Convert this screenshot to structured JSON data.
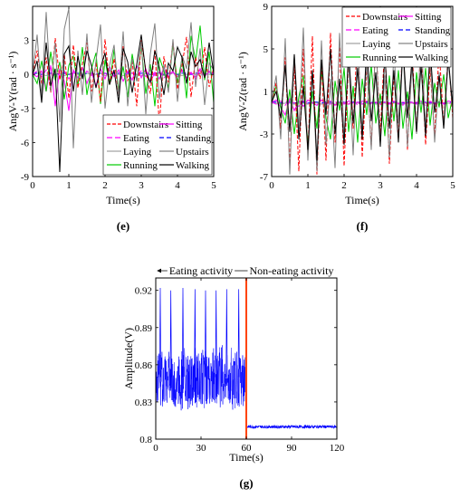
{
  "chart_data": [
    {
      "panel": "(e)",
      "type": "line",
      "xlabel": "Time(s)",
      "ylabel": "AngV-Y(rad · s⁻¹)",
      "xlim": [
        0,
        5
      ],
      "ylim": [
        -9,
        6
      ],
      "xticks": [
        0,
        1,
        2,
        3,
        4,
        5
      ],
      "yticks": [
        -9,
        -6,
        -3,
        0,
        3
      ],
      "legend_position": "bottom-right",
      "series": [
        {
          "name": "Downstairs",
          "color": "#ff0000",
          "dash": "4,2",
          "values": [
            0.0,
            2.1,
            -0.8,
            1.5,
            -1.6,
            3.2,
            -0.5,
            1.8,
            -2.1,
            2.6,
            -1.2,
            0.9,
            2.8,
            -1.5,
            1.1,
            -2.4,
            3.1,
            -0.9,
            1.4,
            -1.8,
            2.5,
            -0.6,
            1.2,
            -2.8,
            3.0,
            0.4,
            -1.7,
            2.2,
            -4.5,
            1.6,
            -0.7,
            2.9,
            -1.3,
            0.8,
            3.3,
            -2.0,
            1.5,
            -0.4,
            2.4,
            -1.1,
            0.6
          ]
        },
        {
          "name": "Eating",
          "color": "#ff00ff",
          "dash": "6,3",
          "values": [
            0.0,
            0.3,
            -0.2,
            0.4,
            -0.3,
            0.2,
            -0.1,
            0.3,
            -0.4,
            0.2,
            0.1,
            -0.2,
            0.3,
            -0.1,
            0.2,
            -0.3,
            0.1,
            0.4,
            -0.2,
            0.1,
            -0.3,
            0.2,
            0.1,
            -0.1,
            0.3,
            -0.2,
            0.4,
            -0.1,
            0.2,
            -0.3,
            0.1,
            0.2,
            -0.2,
            0.3,
            -0.1,
            0.1,
            -0.2,
            0.3,
            -0.1,
            0.2,
            0.0
          ]
        },
        {
          "name": "Laying",
          "color": "#a0a0a0",
          "dash": "",
          "values": [
            0.0,
            0.1,
            0.0,
            -0.1,
            0.1,
            0.0,
            0.1,
            -0.1,
            0.0,
            0.1,
            0.0,
            -0.1,
            0.1,
            0.0,
            0.0,
            0.1,
            -0.1,
            0.0,
            0.1,
            0.0,
            -0.1,
            0.0,
            0.1,
            0.0,
            -0.1,
            0.1,
            0.0,
            0.0,
            0.1,
            -0.1,
            0.0,
            0.1,
            0.0,
            -0.1,
            0.0,
            0.1,
            0.0,
            -0.1,
            0.1,
            0.0,
            0.0
          ]
        },
        {
          "name": "Running",
          "color": "#00cc00",
          "dash": "",
          "values": [
            0.0,
            -0.8,
            1.2,
            -1.5,
            2.0,
            -0.5,
            1.1,
            -2.2,
            0.8,
            1.6,
            -1.0,
            2.4,
            -1.8,
            0.5,
            1.9,
            -2.6,
            1.3,
            -0.9,
            2.2,
            -1.4,
            0.7,
            -2.0,
            1.8,
            -0.6,
            2.5,
            -1.7,
            0.9,
            -2.8,
            1.5,
            0.3,
            -1.2,
            2.7,
            -0.8,
            1.4,
            -2.1,
            3.4,
            1.2,
            4.3,
            -0.5,
            2.0,
            -2.5
          ]
        },
        {
          "name": "Sitting",
          "color": "#ff00ff",
          "dash": "",
          "values": [
            0.0,
            -0.2,
            0.3,
            -1.5,
            0.8,
            -2.8,
            0.5,
            -0.6,
            -3.2,
            0.4,
            -0.3,
            0.6,
            -0.8,
            0.2,
            -1.0,
            0.5,
            -0.4,
            0.7,
            -0.2,
            0.4,
            -0.6,
            0.3,
            -0.5,
            0.8,
            -0.3,
            0.5,
            -0.7,
            0.2,
            -0.4,
            0.6,
            -0.2,
            0.3,
            -0.5,
            0.4,
            -0.3,
            0.2,
            -0.4,
            0.5,
            -0.2,
            0.3,
            0.0
          ]
        },
        {
          "name": "Standing",
          "color": "#0000ff",
          "dash": "5,3",
          "values": [
            0.1,
            0.1,
            0.0,
            0.1,
            0.1,
            0.0,
            0.1,
            0.1,
            0.0,
            0.1,
            0.1,
            0.0,
            0.1,
            0.1,
            0.0,
            0.1,
            0.1,
            0.0,
            0.1,
            0.1,
            0.0,
            0.1,
            0.1,
            0.0,
            0.1,
            0.1,
            0.0,
            0.1,
            0.1,
            0.0,
            0.1,
            0.1,
            0.0,
            0.1,
            0.1,
            0.0,
            0.1,
            0.1,
            0.0,
            0.1,
            0.1
          ]
        },
        {
          "name": "Upstairs",
          "color": "#808080",
          "dash": "",
          "values": [
            0.0,
            3.5,
            -2.0,
            5.5,
            -1.5,
            2.8,
            -4.2,
            4.0,
            5.8,
            -6.5,
            2.1,
            -1.8,
            3.6,
            -2.5,
            1.2,
            4.4,
            -3.0,
            0.8,
            2.6,
            -1.9,
            3.8,
            -2.8,
            1.4,
            -0.6,
            2.9,
            -3.5,
            1.8,
            4.5,
            -2.2,
            0.9,
            -1.6,
            3.1,
            -2.4,
            1.7,
            0.5,
            4.6,
            -1.1,
            2.3,
            -2.7,
            1.0,
            0.4
          ]
        },
        {
          "name": "Walking",
          "color": "#000000",
          "dash": "",
          "values": [
            0.0,
            1.2,
            -2.5,
            2.8,
            -1.0,
            0.5,
            -8.6,
            1.8,
            2.5,
            -1.5,
            1.6,
            -0.4,
            2.1,
            0.8,
            -1.2,
            0.6,
            1.9,
            -0.9,
            0.4,
            -2.5,
            2.3,
            1.1,
            -1.6,
            0.9,
            3.5,
            0.2,
            -0.7,
            2.1,
            0.6,
            -1.8,
            1.0,
            0.3,
            2.4,
            1.5,
            -0.8,
            2.0,
            0.7,
            1.3,
            -0.3,
            2.8,
            0.1
          ]
        }
      ]
    },
    {
      "panel": "(f)",
      "type": "line",
      "xlabel": "Time(s)",
      "ylabel": "AngV-Z(rad · s⁻¹)",
      "xlim": [
        0,
        5
      ],
      "ylim": [
        -7,
        9
      ],
      "xticks": [
        0,
        1,
        2,
        3,
        4,
        5
      ],
      "yticks": [
        -7,
        -3,
        1,
        5,
        9
      ],
      "legend_position": "top-right",
      "series": [
        {
          "name": "Downstairs",
          "color": "#ff0000",
          "dash": "4,2",
          "values": [
            0.0,
            1.8,
            -2.5,
            4.2,
            -5.8,
            3.5,
            -6.5,
            5.0,
            -4.8,
            6.2,
            -6.8,
            3.8,
            -5.5,
            6.5,
            -3.8,
            5.2,
            -6.0,
            4.0,
            -2.5,
            6.8,
            -5.2,
            3.5,
            -4.2,
            6.0,
            -3.0,
            5.5,
            -5.8,
            2.8,
            -3.5,
            6.2,
            -4.5,
            4.8,
            -2.8,
            5.8,
            -4.0,
            3.2,
            -3.2,
            5.0,
            -2.2,
            4.5,
            -1.5
          ]
        },
        {
          "name": "Eating",
          "color": "#ff00ff",
          "dash": "6,3",
          "values": [
            0.0,
            -0.2,
            0.1,
            -0.3,
            0.2,
            -0.1,
            -0.4,
            0.1,
            -0.2,
            0.0,
            -0.3,
            0.2,
            -0.1,
            -0.2,
            0.1,
            -0.4,
            0.0,
            -0.2,
            0.2,
            -0.3,
            0.1,
            -0.1,
            -0.2,
            0.0,
            -0.3,
            0.1,
            -0.2,
            0.0,
            -0.1,
            -0.3,
            0.2,
            -0.2,
            0.0,
            -0.1,
            -0.3,
            0.1,
            -0.2,
            0.0,
            -0.1,
            -0.2,
            0.0
          ]
        },
        {
          "name": "Laying",
          "color": "#a0a0a0",
          "dash": "",
          "values": [
            -0.1,
            -0.1,
            -0.2,
            -0.1,
            -0.1,
            -0.2,
            -0.1,
            -0.1,
            -0.2,
            -0.1,
            -0.1,
            -0.2,
            -0.1,
            -0.1,
            -0.2,
            -0.1,
            -0.1,
            -0.2,
            -0.1,
            -0.1,
            -0.2,
            -0.1,
            -0.1,
            -0.2,
            -0.1,
            -0.1,
            -0.2,
            -0.1,
            -0.1,
            -0.2,
            -0.1,
            -0.1,
            -0.2,
            -0.1,
            -0.1,
            -0.2,
            -0.1,
            -0.1,
            -0.2,
            -0.1,
            -0.1
          ]
        },
        {
          "name": "Running",
          "color": "#00cc00",
          "dash": "",
          "values": [
            0.0,
            1.5,
            -0.5,
            -2.0,
            1.2,
            -3.0,
            0.5,
            2.5,
            -4.0,
            1.0,
            -2.5,
            3.0,
            -1.5,
            -3.5,
            2.0,
            -0.8,
            3.2,
            -2.8,
            1.5,
            -3.8,
            2.2,
            -1.2,
            3.5,
            -2.0,
            0.8,
            -3.2,
            2.5,
            -1.8,
            3.0,
            -2.5,
            1.0,
            -3.5,
            2.8,
            -1.0,
            3.2,
            -2.2,
            1.8,
            -0.5,
            2.6,
            -1.5,
            0.5
          ]
        },
        {
          "name": "Sitting",
          "color": "#ff00ff",
          "dash": "",
          "values": [
            0.0,
            0.2,
            -0.5,
            -1.2,
            0.3,
            -0.8,
            0.1,
            -0.4,
            0.2,
            -0.1,
            -0.3,
            0.2,
            -0.2,
            0.1,
            -0.3,
            0.0,
            -0.2,
            0.1,
            -0.1,
            0.0,
            -0.2,
            0.1,
            -0.1,
            0.0,
            -0.2,
            0.0,
            -0.1,
            0.1,
            -0.2,
            0.0,
            -0.1,
            0.0,
            -0.2,
            0.1,
            -0.1,
            0.0,
            -0.1,
            0.0,
            -0.2,
            0.1,
            0.0
          ]
        },
        {
          "name": "Standing",
          "color": "#0000ff",
          "dash": "5,3",
          "values": [
            0.0,
            0.0,
            -0.1,
            0.0,
            0.0,
            -0.1,
            0.0,
            0.0,
            -0.1,
            0.0,
            0.0,
            -0.1,
            0.0,
            0.0,
            -0.1,
            0.0,
            0.0,
            -0.1,
            0.0,
            0.0,
            -0.1,
            0.0,
            0.0,
            -0.1,
            0.0,
            0.0,
            -0.1,
            0.0,
            0.0,
            -0.1,
            0.0,
            0.0,
            -0.1,
            0.0,
            0.0,
            -0.1,
            0.0,
            0.0,
            -0.1,
            0.0,
            0.0
          ]
        },
        {
          "name": "Upstairs",
          "color": "#808080",
          "dash": "",
          "values": [
            0.0,
            2.5,
            -3.5,
            6.0,
            -6.8,
            4.5,
            -2.5,
            7.0,
            -5.5,
            3.0,
            -6.5,
            5.8,
            -4.0,
            2.2,
            -6.2,
            6.5,
            -3.2,
            4.0,
            -5.0,
            5.5,
            -2.8,
            3.8,
            -4.5,
            6.0,
            -3.8,
            2.5,
            -5.2,
            4.8,
            -2.0,
            5.2,
            -4.2,
            3.5,
            -3.0,
            6.2,
            -2.5,
            4.2,
            -3.8,
            2.8,
            -2.2,
            4.0,
            -1.0
          ]
        },
        {
          "name": "Walking",
          "color": "#000000",
          "dash": "",
          "values": [
            0.0,
            1.0,
            -1.5,
            3.5,
            -2.8,
            4.5,
            -3.5,
            1.5,
            -4.5,
            3.0,
            -5.5,
            4.0,
            -1.2,
            5.0,
            -3.0,
            2.2,
            -4.0,
            4.8,
            -2.0,
            3.2,
            -3.5,
            5.5,
            -1.8,
            2.8,
            -4.2,
            4.5,
            -2.5,
            3.0,
            -3.8,
            5.2,
            -1.5,
            4.0,
            -2.8,
            3.5,
            -3.2,
            5.0,
            -1.0,
            2.5,
            -2.5,
            4.2,
            -0.5
          ]
        }
      ]
    },
    {
      "panel": "(g)",
      "type": "line",
      "xlabel": "Time(s)",
      "ylabel": "Amplitude(V)",
      "xlim": [
        0,
        120
      ],
      "ylim": [
        0.8,
        0.93
      ],
      "xticks": [
        0,
        30,
        60,
        90,
        120
      ],
      "yticks": [
        0.8,
        0.83,
        0.86,
        0.89,
        0.92
      ],
      "annotations": [
        "Eating activity",
        "Non-eating activity"
      ],
      "divider_x": 60,
      "divider_color": "#ff4400",
      "series": [
        {
          "name": "",
          "color": "#0000ff",
          "eating_range": [
            0.828,
            0.868
          ],
          "eating_peaks_x": [
            3,
            10,
            18,
            26,
            33,
            40,
            47,
            55
          ],
          "eating_peaks_y": [
            0.922,
            0.92,
            0.922,
            0.921,
            0.92,
            0.92,
            0.921,
            0.921
          ],
          "noneating_level": 0.81
        }
      ]
    }
  ]
}
